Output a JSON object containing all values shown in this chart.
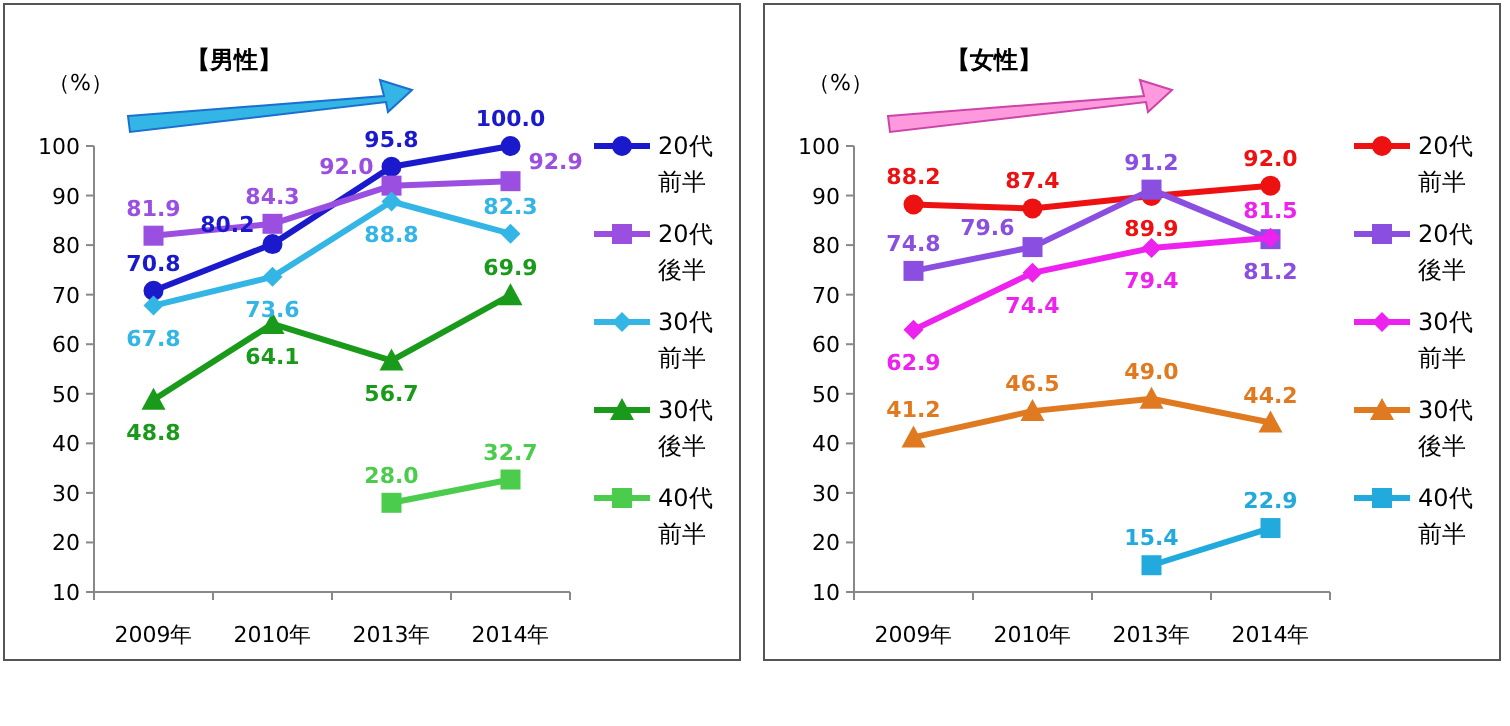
{
  "chart_data": [
    {
      "type": "line",
      "title": "【男性】",
      "ylabel": "（%）",
      "categories": [
        "2009年",
        "2010年",
        "2013年",
        "2014年"
      ],
      "ylim": [
        10,
        100
      ],
      "yticks": [
        10,
        20,
        30,
        40,
        50,
        60,
        70,
        80,
        90,
        100
      ],
      "grid": false,
      "legend": "right",
      "data_labels": true,
      "line_style": "solid",
      "series": [
        {
          "name": "20代前半",
          "color": "#1a1acc",
          "marker": "circle",
          "values": [
            70.8,
            80.2,
            95.8,
            100.0
          ],
          "value_labels": [
            "70.8",
            "80.2",
            "95.8",
            "100.0"
          ]
        },
        {
          "name": "20代後半",
          "color": "#9b4fe0",
          "marker": "square",
          "values": [
            81.9,
            84.3,
            92.0,
            92.9
          ],
          "value_labels": [
            "81.9",
            "84.3",
            "92.0",
            "92.9"
          ]
        },
        {
          "name": "30代前半",
          "color": "#33b5e5",
          "marker": "diamond",
          "values": [
            67.8,
            73.6,
            88.8,
            82.3
          ],
          "value_labels": [
            "67.8",
            "73.6",
            "88.8",
            "82.3"
          ]
        },
        {
          "name": "30代後半",
          "color": "#1a9a1a",
          "marker": "triangle",
          "values": [
            48.8,
            64.1,
            56.7,
            69.9
          ],
          "value_labels": [
            "48.8",
            "64.1",
            "56.7",
            "69.9"
          ]
        },
        {
          "name": "40代前半",
          "color": "#4ccc4c",
          "marker": "square",
          "values": [
            null,
            null,
            28.0,
            32.7
          ],
          "value_labels": [
            null,
            null,
            "28.0",
            "32.7"
          ]
        }
      ]
    },
    {
      "type": "line",
      "title": "【女性】",
      "ylabel": "（%）",
      "categories": [
        "2009年",
        "2010年",
        "2013年",
        "2014年"
      ],
      "ylim": [
        10,
        100
      ],
      "yticks": [
        10,
        20,
        30,
        40,
        50,
        60,
        70,
        80,
        90,
        100
      ],
      "grid": false,
      "legend": "right",
      "data_labels": true,
      "line_style": "solid",
      "series": [
        {
          "name": "20代前半",
          "color": "#ee1111",
          "marker": "circle",
          "values": [
            88.2,
            87.4,
            89.9,
            92.0
          ],
          "value_labels": [
            "88.2",
            "87.4",
            "89.9",
            "92.0"
          ]
        },
        {
          "name": "20代後半",
          "color": "#8a4fe0",
          "marker": "square",
          "values": [
            74.8,
            79.6,
            91.2,
            81.2
          ],
          "value_labels": [
            "74.8",
            "79.6",
            "91.2",
            "81.2"
          ]
        },
        {
          "name": "30代前半",
          "color": "#ee22ee",
          "marker": "diamond",
          "values": [
            62.9,
            74.4,
            79.4,
            81.5
          ],
          "value_labels": [
            "62.9",
            "74.4",
            "79.4",
            "81.5"
          ]
        },
        {
          "name": "30代後半",
          "color": "#e07a20",
          "marker": "triangle",
          "values": [
            41.2,
            46.5,
            49.0,
            44.2
          ],
          "value_labels": [
            "41.2",
            "46.5",
            "49.0",
            "44.2"
          ]
        },
        {
          "name": "40代前半",
          "color": "#22aadd",
          "marker": "square",
          "values": [
            null,
            null,
            15.4,
            22.9
          ],
          "value_labels": [
            null,
            null,
            "15.4",
            "22.9"
          ]
        }
      ]
    }
  ]
}
